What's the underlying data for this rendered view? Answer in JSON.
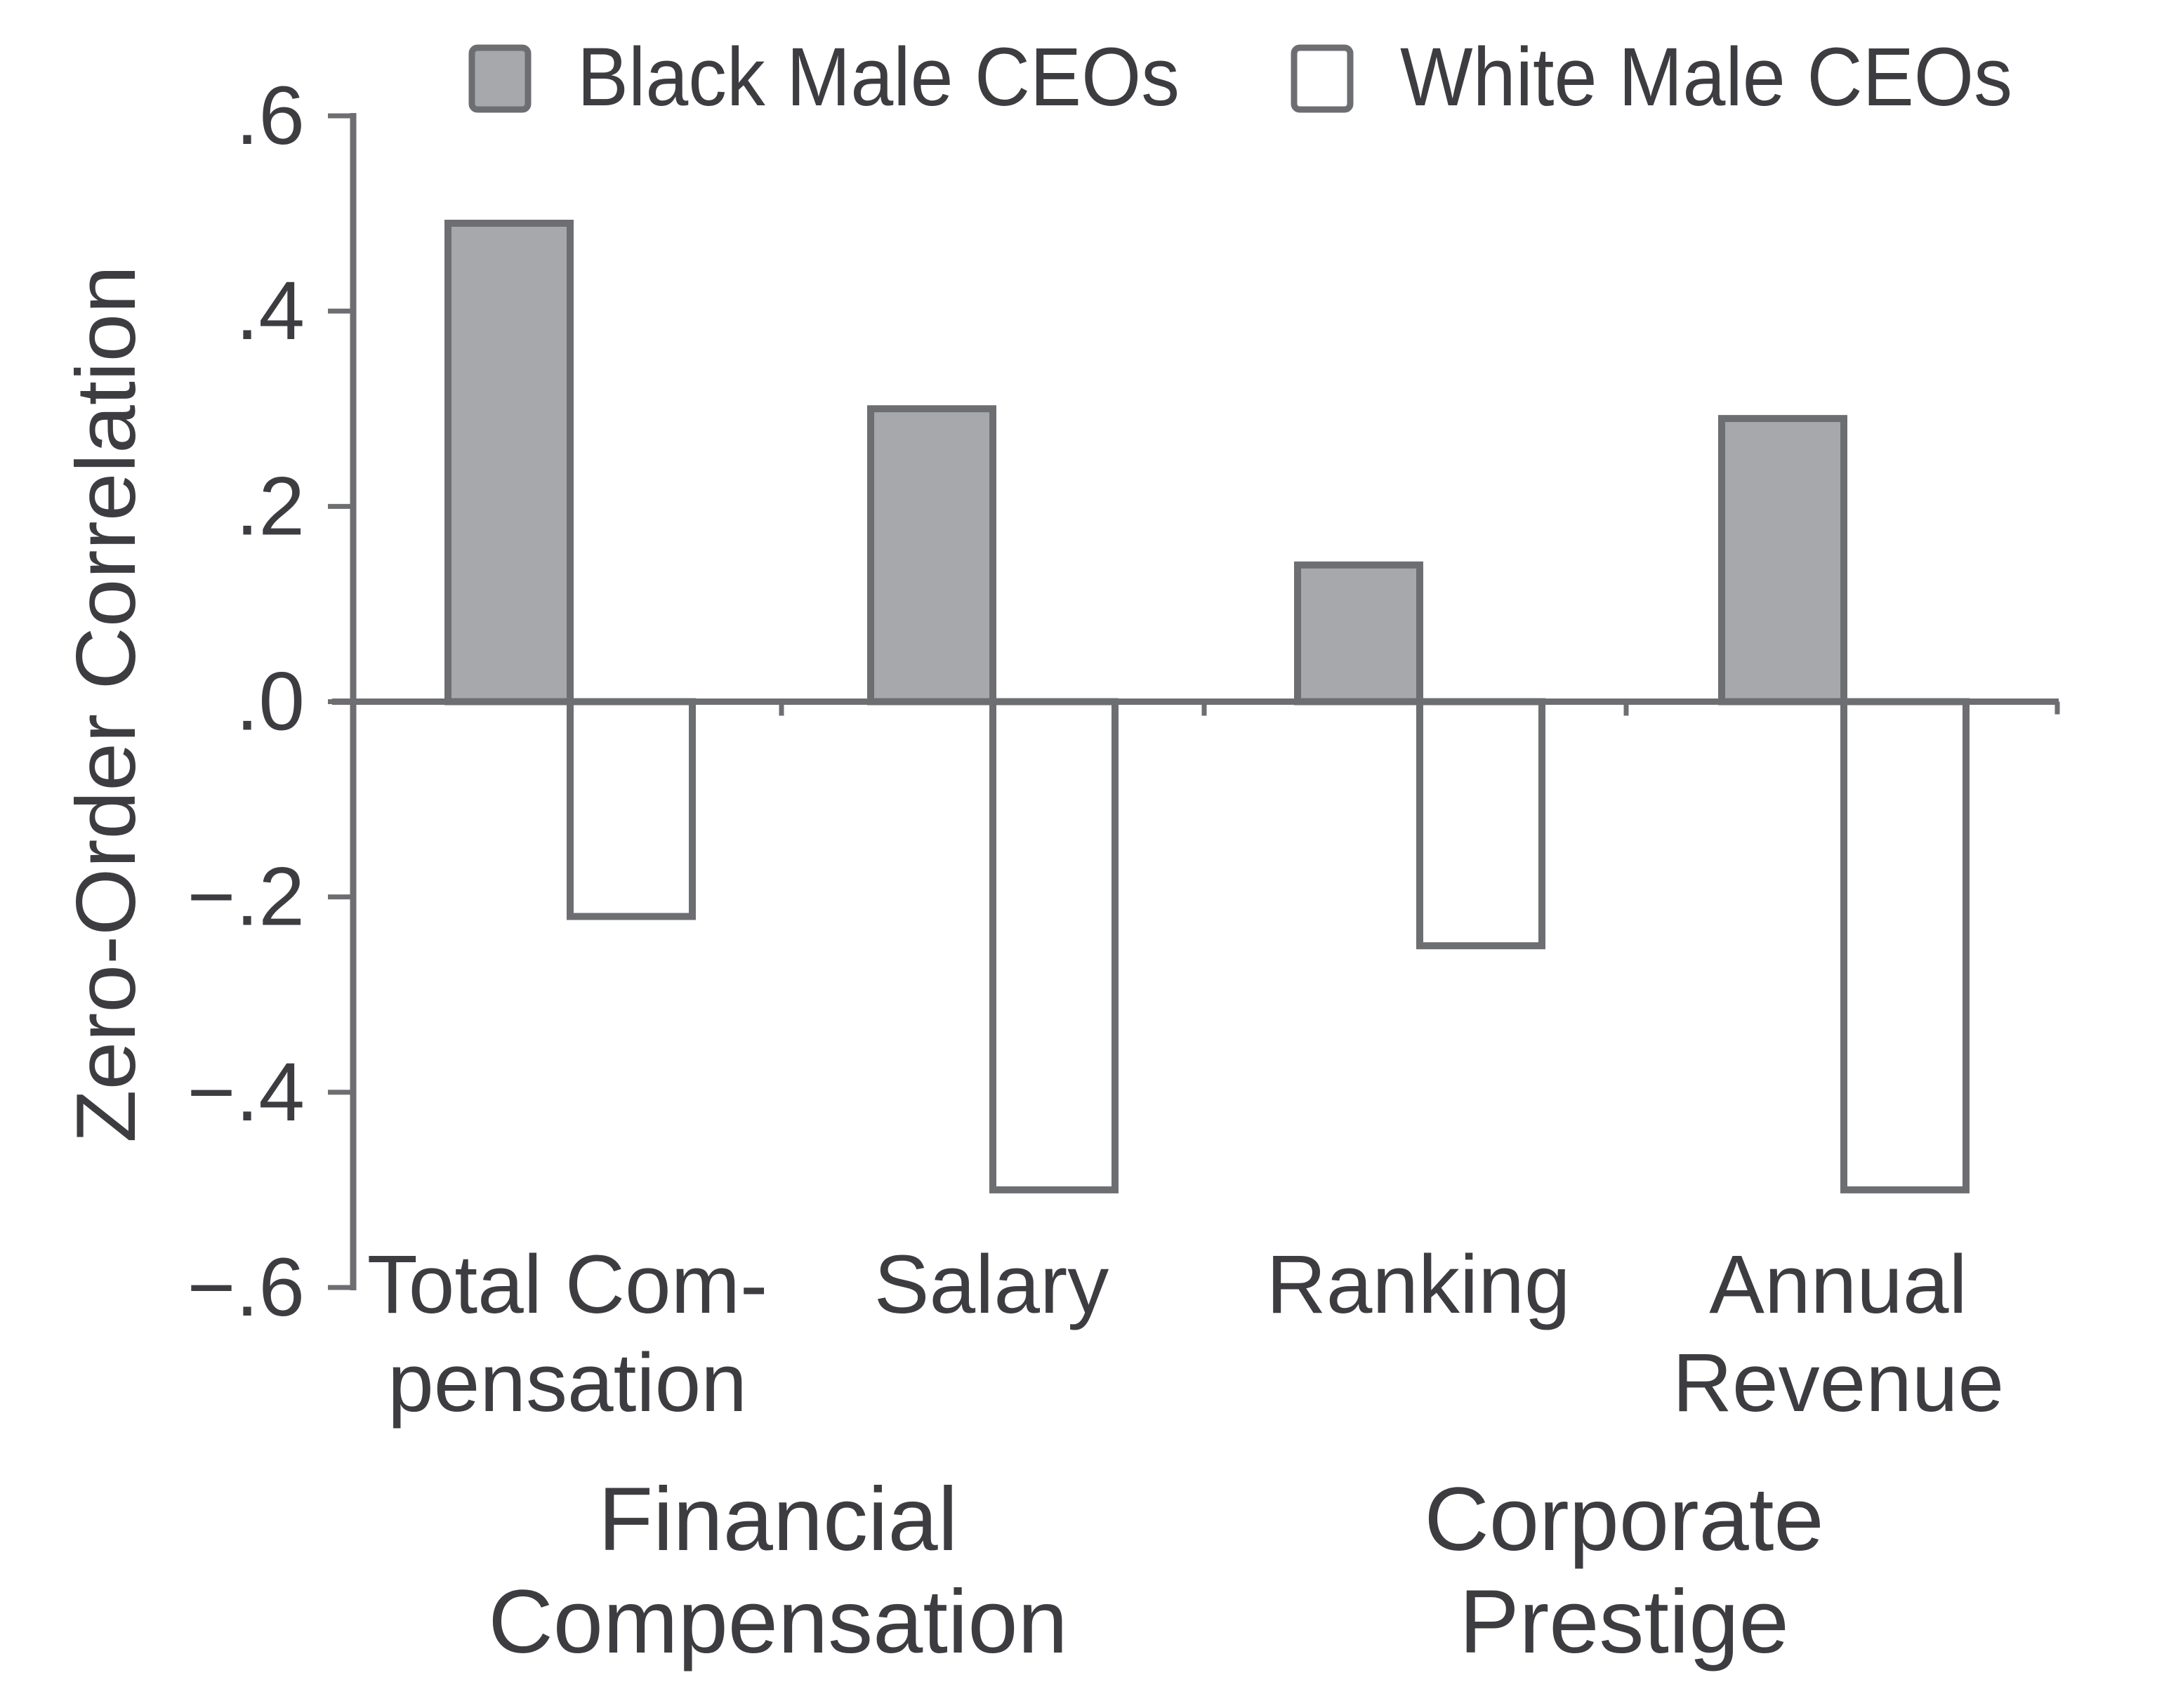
{
  "chart_data": {
    "type": "bar",
    "title": "",
    "xlabel": "",
    "ylabel": "Zero-Order Correlation",
    "ylim": [
      -0.6,
      0.6
    ],
    "yticks": [
      0.6,
      0.4,
      0.2,
      0.0,
      -0.2,
      -0.4,
      -0.6
    ],
    "ytick_labels": [
      ".6",
      ".4",
      ".2",
      ".0",
      "−.2",
      "−.4",
      "−.6"
    ],
    "grid": false,
    "legend_position": "top",
    "categories": [
      "Total Compensation",
      "Salary",
      "Ranking",
      "Annual Revenue"
    ],
    "category_label_lines": [
      [
        "Total Com-",
        "pensation"
      ],
      [
        "Salary"
      ],
      [
        "Ranking"
      ],
      [
        "Annual",
        "Revenue"
      ]
    ],
    "groups": [
      {
        "label_lines": [
          "Financial",
          "Compensation"
        ],
        "categories": [
          "Total Compensation",
          "Salary"
        ]
      },
      {
        "label_lines": [
          "Corporate",
          "Prestige"
        ],
        "categories": [
          "Ranking",
          "Annual Revenue"
        ]
      }
    ],
    "series": [
      {
        "name": "Black Male CEOs",
        "color": "#a7a8ab",
        "values": [
          0.49,
          0.3,
          0.14,
          0.29
        ]
      },
      {
        "name": "White Male CEOs",
        "color": "#ffffff",
        "values": [
          -0.22,
          -0.5,
          -0.25,
          -0.5
        ]
      }
    ]
  },
  "colors": {
    "axis": "#6d6e71",
    "text": "#3d3d41",
    "background": "#ffffff"
  }
}
